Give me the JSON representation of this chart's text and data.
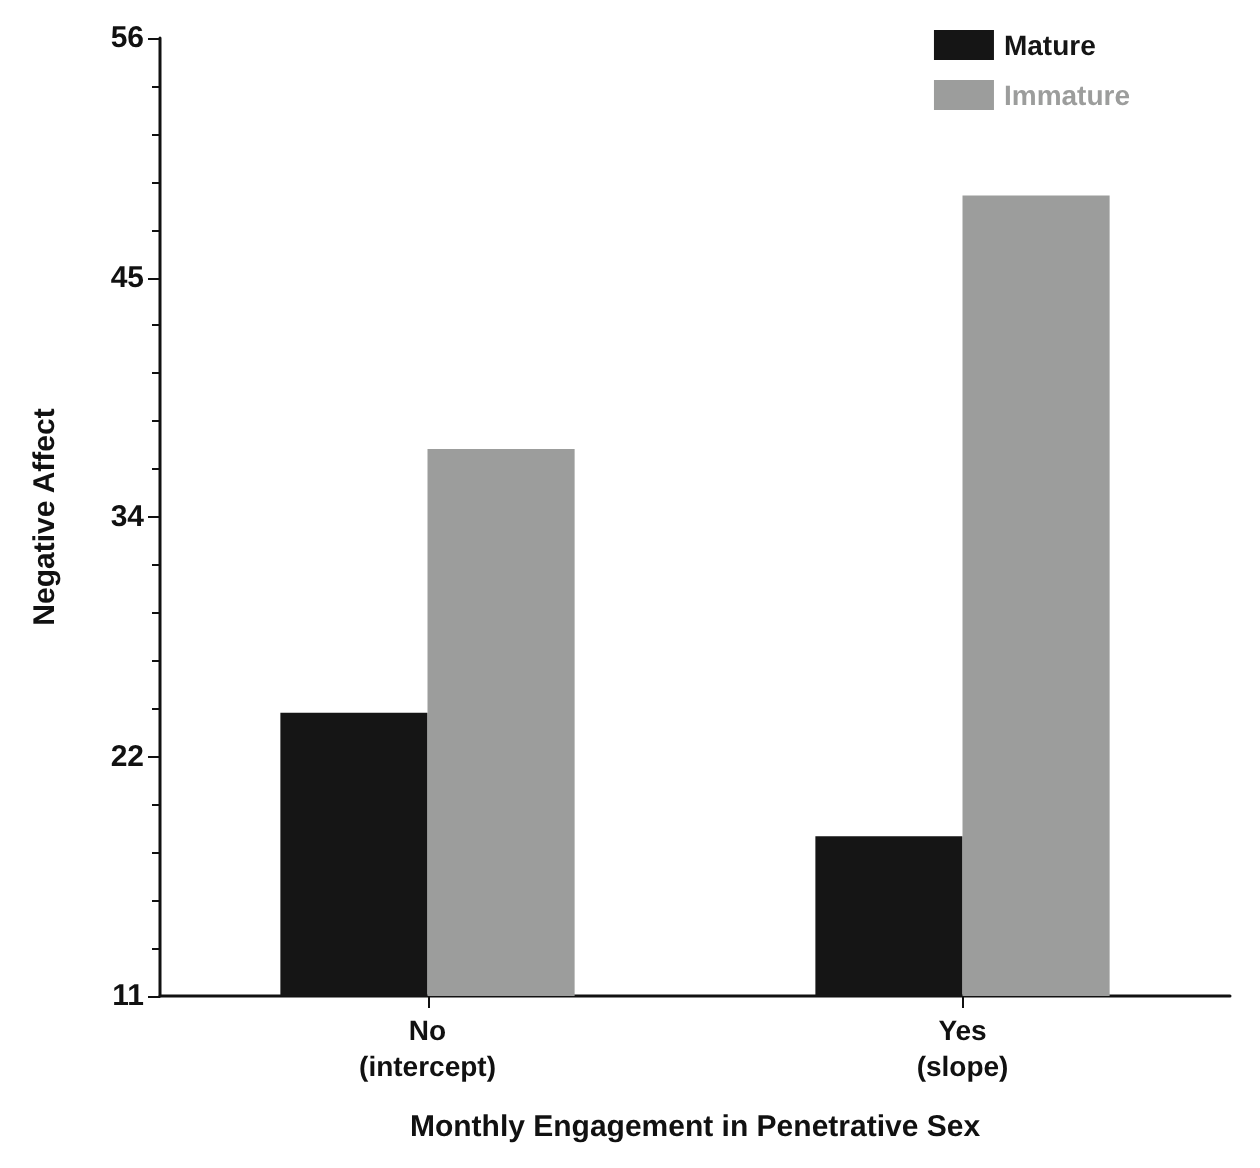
{
  "chart_data": {
    "type": "bar",
    "xlabel": "Monthly Engagement in Penetrative Sex",
    "ylabel": "Negative Affect",
    "categories": [
      "No\n(intercept)",
      "Yes\n(slope)"
    ],
    "series": [
      {
        "name": "Mature",
        "color": "#151515",
        "values": [
          24.3,
          18.5
        ]
      },
      {
        "name": "Immature",
        "color": "#9c9d9c",
        "values": [
          36.7,
          48.6
        ]
      }
    ],
    "ylim": [
      11,
      56
    ],
    "yticks": [
      11,
      {
        "value": 22.25,
        "label": "22"
      },
      {
        "value": 33.5,
        "label": "34"
      },
      {
        "value": 44.75,
        "label": "45"
      },
      56
    ],
    "legend": "top right",
    "grid": false
  }
}
